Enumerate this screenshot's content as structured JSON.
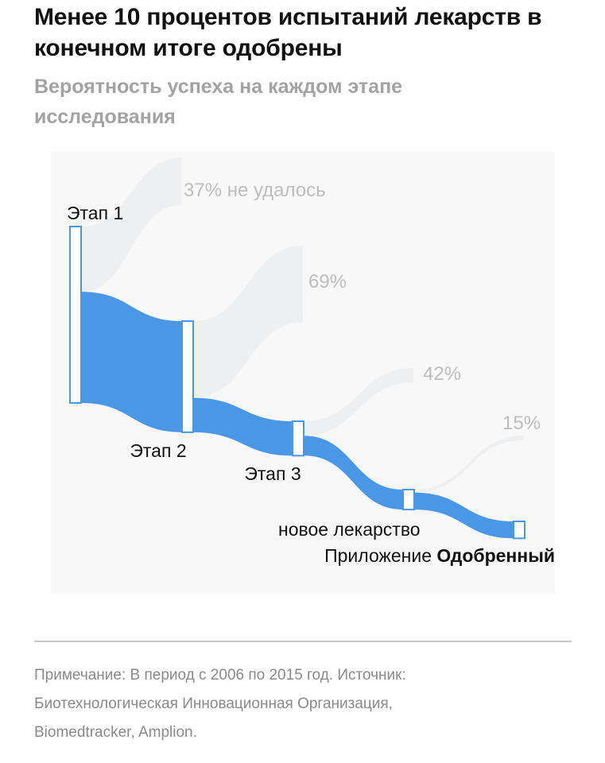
{
  "header": {
    "title": "Менее 10 процентов испытаний лекарств в конечном итоге одобрены",
    "subtitle": "Вероятность успеха на каждом этапе исследования"
  },
  "colors": {
    "flow": "#4a97e6",
    "fail_flow": "#eeeff1",
    "fail_label": "#bdbdbd",
    "background": "#f8f8f8",
    "node_border": "#4a97e6"
  },
  "chart_data": {
    "type": "sankey",
    "title": "Менее 10 процентов испытаний лекарств в конечном итоге одобрены",
    "subtitle": "Вероятность успеха на каждом этапе исследования",
    "stages": [
      {
        "label": "Этап 1",
        "failed_label": "37% не удалось",
        "fail_pct": 37
      },
      {
        "label": "Этап 2",
        "failed_label": "69%",
        "fail_pct": 69
      },
      {
        "label": "Этап 3",
        "failed_label": "42%",
        "fail_pct": 42
      },
      {
        "label": "новое лекарство",
        "failed_label": "15%",
        "fail_pct": 15
      }
    ],
    "final_label_prefix": "Приложение",
    "final_label_bold": "Одобренный",
    "remaining_share": [
      100,
      63,
      19.5,
      11.3,
      9.6
    ]
  },
  "footer": {
    "note": "Примечание: В период с 2006 по 2015 год. Источник:",
    "source_line1": "Биотехнологическая Инновационная Организация,",
    "source_line2": "Biomedtracker, Amplion."
  }
}
